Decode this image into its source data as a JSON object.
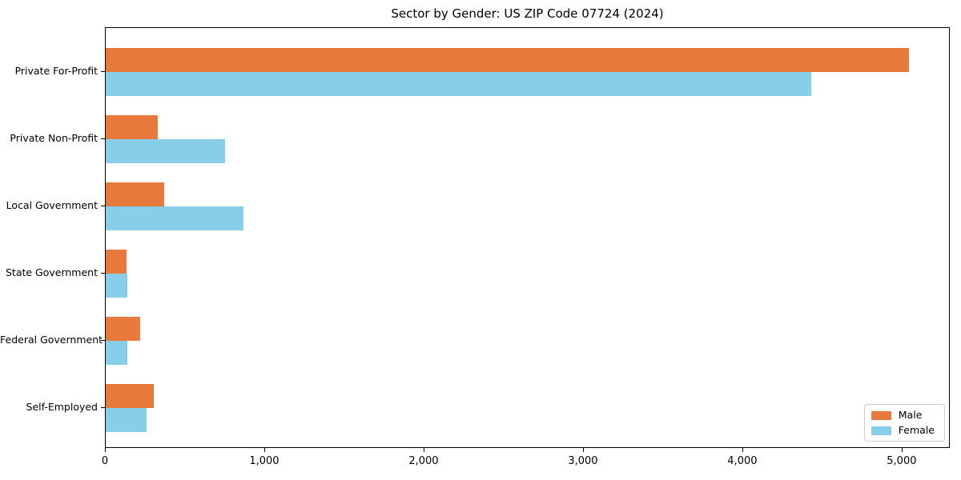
{
  "title": "Sector by Gender: US ZIP Code 07724 (2024)",
  "chart_data": {
    "type": "bar",
    "orientation": "horizontal",
    "title": "Sector by Gender: US ZIP Code 07724 (2024)",
    "xlabel": "",
    "ylabel": "",
    "categories": [
      "Private For-Profit",
      "Private Non-Profit",
      "Local Government",
      "State Government",
      "Federal Government",
      "Self-Employed"
    ],
    "series": [
      {
        "name": "Male",
        "color": "#e8793c",
        "values": [
          5040,
          326,
          366,
          130,
          214,
          301
        ]
      },
      {
        "name": "Female",
        "color": "#87ceeb",
        "values": [
          4428,
          748,
          863,
          135,
          138,
          256
        ]
      }
    ],
    "xlim": [
      0,
      5292
    ],
    "x_ticks": [
      0,
      1000,
      2000,
      3000,
      4000,
      5000
    ],
    "x_tick_labels": [
      "0",
      "1,000",
      "2,000",
      "3,000",
      "4,000",
      "5,000"
    ],
    "grid": false,
    "legend_position": "lower right",
    "legend_border_color": "#cccccc",
    "axis_color": "#000000",
    "background_color": "#ffffff"
  }
}
